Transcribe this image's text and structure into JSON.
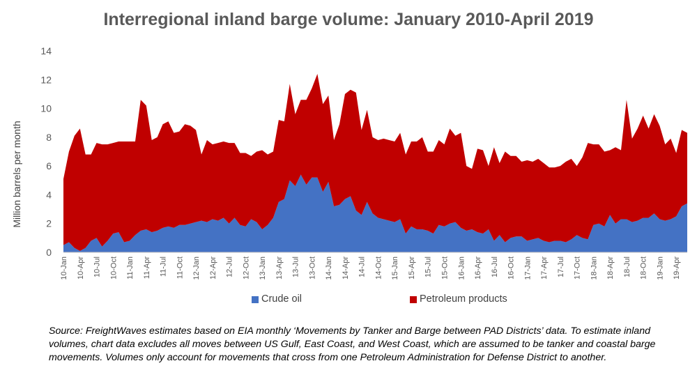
{
  "chart_data": {
    "type": "area",
    "title": "Interregional inland barge volume: January 2010-April 2019",
    "ylabel": "Million barrels per month",
    "xlabel": "",
    "ylim": [
      0,
      14
    ],
    "yticks": [
      0,
      2,
      4,
      6,
      8,
      10,
      12,
      14
    ],
    "stacked": true,
    "grid": false,
    "legend_position": "bottom",
    "x_tick_labels": [
      "10-Jan",
      "10-Apr",
      "10-Jul",
      "10-Oct",
      "11-Jan",
      "11-Apr",
      "11-Jul",
      "11-Oct",
      "12-Jan",
      "12-Apr",
      "12-Jul",
      "12-Oct",
      "13-Jan",
      "13-Apr",
      "13-Jul",
      "13-Oct",
      "14-Jan",
      "14-Apr",
      "14-Jul",
      "14-Oct",
      "15-Jan",
      "15-Apr",
      "15-Jul",
      "15-Oct",
      "16-Jan",
      "16-Apr",
      "16-Jul",
      "16-Oct",
      "17-Jan",
      "17-Apr",
      "17-Jul",
      "17-Oct",
      "18-Jan",
      "18-Apr",
      "18-Jul",
      "18-Oct",
      "19-Jan",
      "19-Apr"
    ],
    "series": [
      {
        "name": "Crude oil",
        "color": "#4472C4",
        "values": [
          0.5,
          0.7,
          0.3,
          0.1,
          0.3,
          0.8,
          1.0,
          0.4,
          0.8,
          1.3,
          1.4,
          0.7,
          0.8,
          1.2,
          1.5,
          1.6,
          1.4,
          1.5,
          1.7,
          1.8,
          1.7,
          1.9,
          1.9,
          2.0,
          2.1,
          2.2,
          2.1,
          2.3,
          2.2,
          2.4,
          2.0,
          2.4,
          1.9,
          1.8,
          2.3,
          2.1,
          1.6,
          1.9,
          2.4,
          3.5,
          3.7,
          5.0,
          4.6,
          5.4,
          4.7,
          5.2,
          5.2,
          4.2,
          4.9,
          3.2,
          3.3,
          3.7,
          3.9,
          2.9,
          2.6,
          3.5,
          2.7,
          2.4,
          2.3,
          2.2,
          2.1,
          2.3,
          1.3,
          1.8,
          1.6,
          1.6,
          1.5,
          1.3,
          1.9,
          1.8,
          2.0,
          2.1,
          1.7,
          1.5,
          1.6,
          1.4,
          1.3,
          1.6,
          0.8,
          1.2,
          0.7,
          1.0,
          1.1,
          1.1,
          0.8,
          0.9,
          1.0,
          0.8,
          0.7,
          0.8,
          0.8,
          0.7,
          0.9,
          1.2,
          1.0,
          0.9,
          1.9,
          2.0,
          1.8,
          2.6,
          2.0,
          2.3,
          2.3,
          2.1,
          2.2,
          2.4,
          2.4,
          2.7,
          2.3,
          2.2,
          2.3,
          2.5,
          3.2,
          3.4
        ]
      },
      {
        "name": "Petroleum products",
        "color": "#C00000",
        "values": [
          4.6,
          6.3,
          7.8,
          8.5,
          6.5,
          6.0,
          6.6,
          7.1,
          6.7,
          6.3,
          6.3,
          7.0,
          6.9,
          6.5,
          9.1,
          8.6,
          6.4,
          6.5,
          7.2,
          7.3,
          6.6,
          6.5,
          7.0,
          6.8,
          6.4,
          4.6,
          5.7,
          5.2,
          5.4,
          5.3,
          5.6,
          5.2,
          5.0,
          5.1,
          4.4,
          4.9,
          5.5,
          4.9,
          4.6,
          5.7,
          5.4,
          6.7,
          5.0,
          5.2,
          5.9,
          6.2,
          7.2,
          6.1,
          6.0,
          4.6,
          5.6,
          7.3,
          7.4,
          8.2,
          5.9,
          6.4,
          5.3,
          5.4,
          5.6,
          5.6,
          5.6,
          6.0,
          5.5,
          5.9,
          6.1,
          6.4,
          5.5,
          5.7,
          5.9,
          5.7,
          6.6,
          6.0,
          6.6,
          4.5,
          4.2,
          5.8,
          5.8,
          4.4,
          6.5,
          5.0,
          6.3,
          5.7,
          5.6,
          5.2,
          5.6,
          5.4,
          5.5,
          5.4,
          5.2,
          5.1,
          5.2,
          5.6,
          5.6,
          4.8,
          5.6,
          6.7,
          5.6,
          5.5,
          5.2,
          4.5,
          5.3,
          4.8,
          8.3,
          5.8,
          6.4,
          7.1,
          6.2,
          6.9,
          6.5,
          5.3,
          5.6,
          4.4,
          5.3,
          4.9
        ]
      }
    ],
    "footnote": "Source: FreightWaves estimates based on EIA monthly ‘Movements by Tanker and Barge between PAD Districts’ data. To estimate inland volumes, chart data excludes all moves between US Gulf, East Coast, and West Coast, which are assumed to be tanker and coastal barge movements. Volumes only account for movements that cross from one Petroleum Administration for Defense District to another."
  }
}
